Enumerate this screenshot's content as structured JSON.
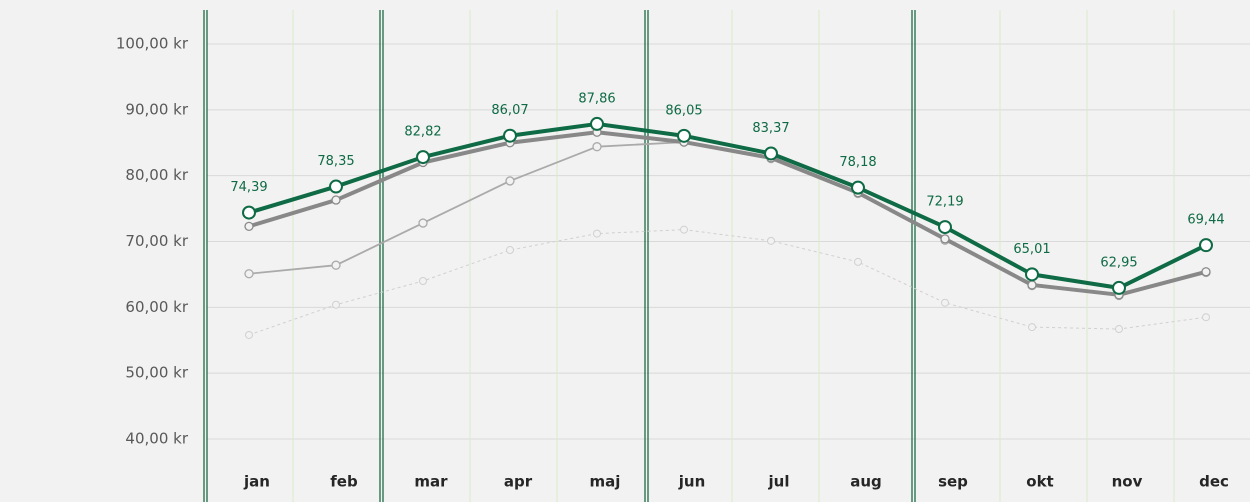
{
  "chart_data": {
    "type": "line",
    "categories": [
      "jan",
      "feb",
      "mar",
      "apr",
      "maj",
      "jun",
      "jul",
      "aug",
      "sep",
      "okt",
      "nov",
      "dec"
    ],
    "ylim": [
      40,
      100
    ],
    "yticks": [
      {
        "value": 40,
        "label": "40,00 kr"
      },
      {
        "value": 50,
        "label": "50,00 kr"
      },
      {
        "value": 60,
        "label": "60,00 kr"
      },
      {
        "value": 70,
        "label": "70,00 kr"
      },
      {
        "value": 80,
        "label": "80,00 kr"
      },
      {
        "value": 90,
        "label": "90,00 kr"
      },
      {
        "value": 100,
        "label": "100,00 kr"
      }
    ],
    "grid": true,
    "series": [
      {
        "color": "#d0d0d0",
        "style": "dotted",
        "values": [
          55.8,
          60.4,
          64.0,
          68.7,
          71.2,
          71.8,
          70.1,
          66.9,
          60.7,
          57.0,
          56.7,
          58.5
        ]
      },
      {
        "color": "#aaaaaa",
        "style": "thin",
        "values": [
          65.1,
          66.4,
          72.8,
          79.2,
          84.4,
          85.1,
          82.6,
          77.3,
          70.2,
          63.3,
          61.8,
          65.3
        ]
      },
      {
        "color": "#888888",
        "style": "thick",
        "values": [
          72.3,
          76.3,
          82.0,
          85.0,
          86.6,
          85.1,
          82.7,
          77.4,
          70.4,
          63.4,
          61.9,
          65.4
        ]
      },
      {
        "color": "#0e6b45",
        "style": "main",
        "values": [
          74.39,
          78.35,
          82.82,
          86.07,
          87.86,
          86.05,
          83.37,
          78.18,
          72.19,
          65.01,
          62.95,
          69.44
        ],
        "value_labels": [
          "74,39",
          "78,35",
          "82,82",
          "86,07",
          "87,86",
          "86,05",
          "83,37",
          "78,18",
          "72,19",
          "65,01",
          "62,95",
          "69,44"
        ]
      }
    ]
  }
}
